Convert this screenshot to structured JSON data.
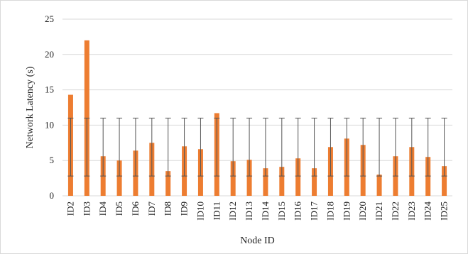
{
  "chart_data": {
    "type": "bar",
    "title": "",
    "xlabel": "Node ID",
    "ylabel": "Network Latency (s)",
    "ylim": [
      0,
      25
    ],
    "yticks": [
      0,
      5,
      10,
      15,
      20,
      25
    ],
    "grid": true,
    "legend": "none",
    "bar_color": "#ED7D31",
    "error_bar_color": "#555555",
    "categories": [
      "ID2",
      "ID3",
      "ID4",
      "ID5",
      "ID6",
      "ID7",
      "ID8",
      "ID9",
      "ID10",
      "ID11",
      "ID12",
      "ID13",
      "ID14",
      "ID15",
      "ID16",
      "ID17",
      "ID18",
      "ID19",
      "ID20",
      "ID21",
      "ID22",
      "ID23",
      "ID24",
      "ID25"
    ],
    "values": [
      14.3,
      22.0,
      5.6,
      5.0,
      6.4,
      7.5,
      3.5,
      7.0,
      6.6,
      11.7,
      4.9,
      5.1,
      3.9,
      4.1,
      5.3,
      3.9,
      6.9,
      8.1,
      7.2,
      3.0,
      5.6,
      6.9,
      5.5,
      4.2
    ],
    "error_low": [
      2.8,
      2.8,
      2.8,
      2.8,
      2.8,
      2.8,
      2.8,
      2.8,
      2.8,
      2.8,
      2.8,
      2.8,
      2.8,
      2.8,
      2.8,
      2.8,
      2.8,
      2.8,
      2.8,
      2.8,
      2.8,
      2.8,
      2.8,
      2.8
    ],
    "error_high": [
      11.0,
      11.0,
      11.0,
      11.0,
      11.0,
      11.0,
      11.0,
      11.0,
      11.0,
      11.0,
      11.0,
      11.0,
      11.0,
      11.0,
      11.0,
      11.0,
      11.0,
      11.0,
      11.0,
      11.0,
      11.0,
      11.0,
      11.0,
      11.0
    ]
  }
}
